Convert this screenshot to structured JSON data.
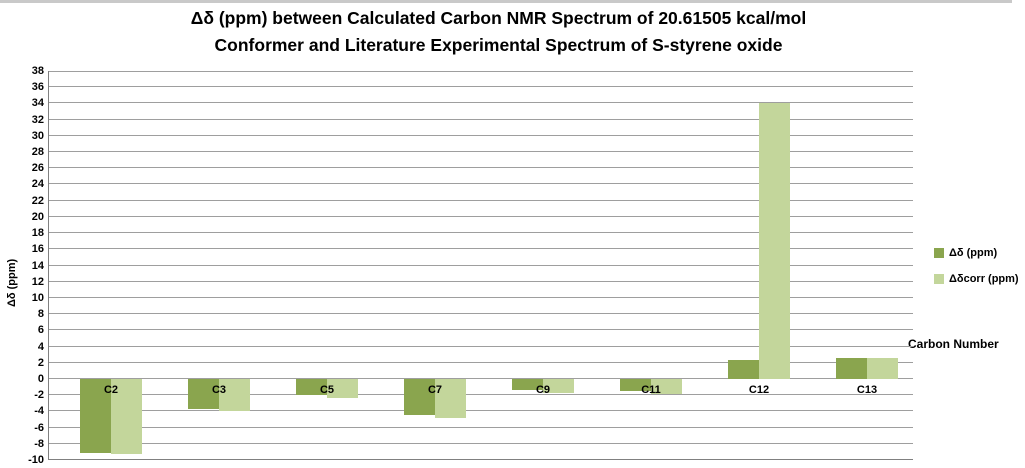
{
  "chart": {
    "title_line1": "Δδ (ppm) between Calculated Carbon NMR Spectrum of 20.61505 kcal/mol",
    "title_line2": "Conformer and Literature Experimental Spectrum of S-styrene oxide"
  },
  "chart_data": {
    "type": "bar",
    "title": "Δδ (ppm) between Calculated Carbon NMR Spectrum of 20.61505 kcal/mol Conformer and Literature Experimental Spectrum of S-styrene oxide",
    "categories": [
      "C2",
      "C3",
      "C5",
      "C7",
      "C9",
      "C11",
      "C12",
      "C13"
    ],
    "series": [
      {
        "name": "Δδ (ppm)",
        "color": "#8aa54e",
        "values": [
          -9.1,
          -3.7,
          -2.0,
          -4.4,
          -1.4,
          -1.5,
          2.3,
          2.6
        ]
      },
      {
        "name": "Δδcorr (ppm)",
        "color": "#c3d69b",
        "values": [
          -9.3,
          -4.0,
          -2.3,
          -4.8,
          -1.7,
          -1.8,
          34.0,
          2.6
        ]
      }
    ],
    "xlabel": "Carbon Number",
    "ylabel": "Δδ (ppm)",
    "ylim": [
      -10,
      38
    ],
    "ytick_step": 2,
    "grid": true,
    "legend_position": "right"
  },
  "colors": {
    "gridline": "#9e9e9e",
    "axis": "#808080",
    "series_dark": "#8aa54e",
    "series_light": "#c3d69b"
  }
}
